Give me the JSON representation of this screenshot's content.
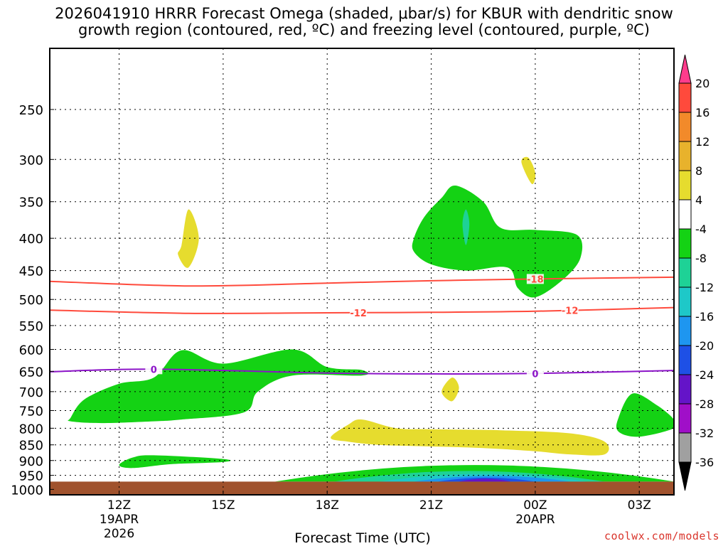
{
  "title": {
    "line1": "2026041910 HRRR Forecast Omega (shaded, μbar/s) for KBUR with dendritic snow",
    "line2": "growth region (contoured, red, ºC) and freezing level (contoured, purple, ºC)"
  },
  "credit": "coolwx.com/models",
  "chart_data": {
    "type": "area",
    "title": "2026041910 HRRR Forecast Omega (shaded, μbar/s) for KBUR with dendritic snow growth region (contoured, red, ºC) and freezing level (contoured, purple, ºC)",
    "xlabel": "Forecast Time (UTC)",
    "ylabel": "",
    "y_scale": "log",
    "y_inverted": true,
    "y_ticks": [
      250,
      300,
      350,
      400,
      450,
      500,
      550,
      600,
      650,
      700,
      750,
      800,
      850,
      900,
      950,
      1000
    ],
    "ylim": [
      1000,
      200
    ],
    "xlim_hours": [
      10,
      28
    ],
    "x_ticks": [
      {
        "hour": 12,
        "label": "12Z",
        "sub1": "19APR",
        "sub2": "2026"
      },
      {
        "hour": 15,
        "label": "15Z",
        "sub1": "",
        "sub2": ""
      },
      {
        "hour": 18,
        "label": "18Z",
        "sub1": "",
        "sub2": ""
      },
      {
        "hour": 21,
        "label": "21Z",
        "sub1": "",
        "sub2": ""
      },
      {
        "hour": 24,
        "label": "00Z",
        "sub1": "20APR",
        "sub2": ""
      },
      {
        "hour": 27,
        "label": "03Z",
        "sub1": "",
        "sub2": ""
      }
    ],
    "grid": true,
    "colorbar": {
      "labels": [
        20,
        16,
        12,
        8,
        4,
        -4,
        -8,
        -12,
        -16,
        -20,
        -24,
        -28,
        -32,
        -36
      ],
      "colors": [
        "#ff3c8c",
        "#ff4a3c",
        "#f28a2a",
        "#e8b22c",
        "#e6dc2e",
        "#ffffff",
        "#14d214",
        "#1ed296",
        "#1ec8c8",
        "#1e96f0",
        "#1e50e6",
        "#6414c8",
        "#a00fc8",
        "#a0a0a0",
        "#000000"
      ],
      "tip_top": "#ff3c8c",
      "tip_bottom": "#000000"
    },
    "contours": [
      {
        "color": "#ff4a3c",
        "label": "-18",
        "label_hour": 24,
        "points": [
          [
            10,
            468
          ],
          [
            14,
            476
          ],
          [
            18,
            471
          ],
          [
            21,
            467
          ],
          [
            24,
            464
          ],
          [
            28,
            461
          ]
        ]
      },
      {
        "color": "#ff4a3c",
        "label": "-12",
        "label_hour": 18.9,
        "points": [
          [
            10,
            520
          ],
          [
            14,
            526
          ],
          [
            18,
            525
          ],
          [
            21,
            524
          ],
          [
            24,
            522
          ],
          [
            28,
            515
          ]
        ]
      },
      {
        "color": "#ff4a3c",
        "label": "-12",
        "label_hour": 25,
        "points": []
      },
      {
        "color": "#8c14c8",
        "label": "0",
        "label_hour": 13,
        "points": [
          [
            10,
            651
          ],
          [
            13,
            645
          ],
          [
            18,
            654
          ],
          [
            21,
            656
          ],
          [
            24,
            655
          ],
          [
            28,
            648
          ]
        ]
      },
      {
        "color": "#8c14c8",
        "label": "0",
        "label_hour": 24,
        "points": []
      }
    ],
    "shaded_regions": [
      {
        "value": -6,
        "color": "#14d214",
        "points": [
          [
            10.6,
            770
          ],
          [
            11,
            720
          ],
          [
            12,
            680
          ],
          [
            13,
            665
          ],
          [
            13.8,
            602
          ],
          [
            15,
            632
          ],
          [
            17,
            600
          ],
          [
            18,
            640
          ],
          [
            19,
            647
          ],
          [
            19,
            660
          ],
          [
            17,
            660
          ],
          [
            16,
            700
          ],
          [
            15.6,
            755
          ],
          [
            13.8,
            775
          ],
          [
            13,
            780
          ],
          [
            11.5,
            785
          ],
          [
            10.6,
            780
          ]
        ]
      },
      {
        "value": -6,
        "color": "#14d214",
        "points": [
          [
            12,
            915
          ],
          [
            12.4,
            890
          ],
          [
            13,
            883
          ],
          [
            15,
            895
          ],
          [
            15,
            905
          ],
          [
            13.5,
            912
          ],
          [
            12.4,
            925
          ]
        ]
      },
      {
        "value": -6,
        "color": "#14d214",
        "points": [
          [
            20.5,
            400
          ],
          [
            20.8,
            370
          ],
          [
            21.3,
            345
          ],
          [
            21.7,
            330
          ],
          [
            22.5,
            350
          ],
          [
            23,
            385
          ],
          [
            24,
            388
          ],
          [
            25.2,
            395
          ],
          [
            25.3,
            430
          ],
          [
            24.8,
            465
          ],
          [
            24,
            496
          ],
          [
            23.5,
            480
          ],
          [
            23.2,
            445
          ],
          [
            22,
            450
          ],
          [
            21,
            440
          ],
          [
            20.5,
            420
          ]
        ]
      },
      {
        "value": -10,
        "color": "#1ed296",
        "points": [
          [
            21.9,
            380
          ],
          [
            22,
            360
          ],
          [
            22.1,
            380
          ],
          [
            22,
            410
          ]
        ]
      },
      {
        "value": -6,
        "color": "#14d214",
        "points": [
          [
            26.4,
            770
          ],
          [
            26.8,
            705
          ],
          [
            27.5,
            735
          ],
          [
            28,
            775
          ],
          [
            28,
            800
          ],
          [
            27,
            825
          ],
          [
            26.4,
            810
          ]
        ]
      },
      {
        "value": 6,
        "color": "#e6dc2e",
        "points": [
          [
            13.8,
            410
          ],
          [
            14,
            360
          ],
          [
            14.3,
            400
          ],
          [
            14,
            445
          ],
          [
            13.7,
            425
          ]
        ]
      },
      {
        "value": 6,
        "color": "#e6dc2e",
        "points": [
          [
            23.6,
            303
          ],
          [
            23.8,
            298
          ],
          [
            24,
            315
          ],
          [
            23.9,
            328
          ]
        ]
      },
      {
        "value": 6,
        "color": "#e6dc2e",
        "points": [
          [
            21.3,
            700
          ],
          [
            21.6,
            665
          ],
          [
            21.8,
            690
          ],
          [
            21.6,
            725
          ]
        ]
      },
      {
        "value": 6,
        "color": "#e6dc2e",
        "points": [
          [
            18.1,
            828
          ],
          [
            18.6,
            790
          ],
          [
            19,
            775
          ],
          [
            20,
            800
          ],
          [
            21,
            803
          ],
          [
            23,
            806
          ],
          [
            25,
            815
          ],
          [
            26,
            840
          ],
          [
            26,
            880
          ],
          [
            25,
            880
          ],
          [
            24,
            870
          ],
          [
            22.5,
            860
          ],
          [
            21,
            855
          ],
          [
            19.5,
            850
          ],
          [
            18.6,
            840
          ]
        ]
      }
    ],
    "ground_level_hpa": 972,
    "ground_color": "#a0522d"
  }
}
